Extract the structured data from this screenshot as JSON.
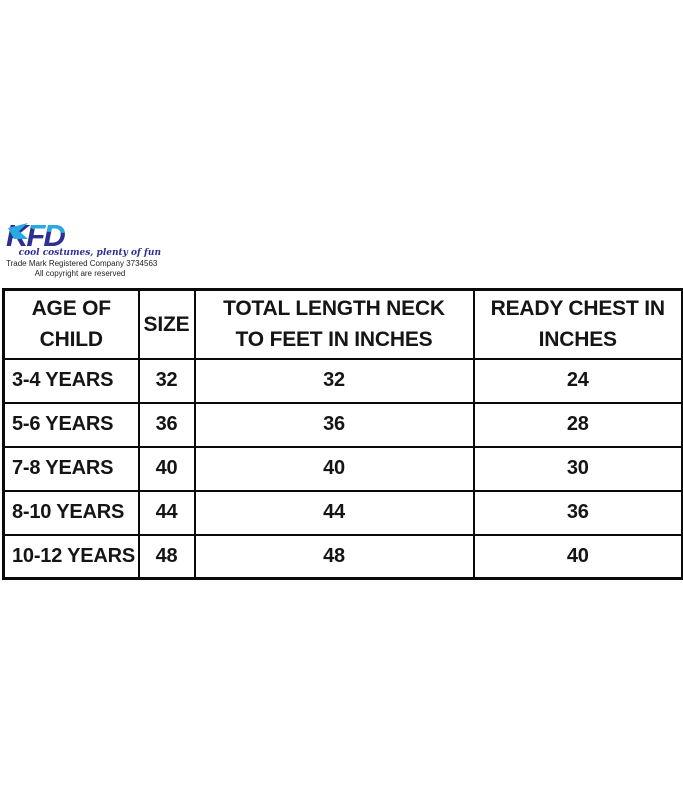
{
  "logo": {
    "brand": "KFD",
    "tagline": "cool costumes, plenty of fun",
    "trademark_line": "Trade Mark Registered Company 3734563",
    "copyright_line": "All copyright are reserved",
    "colors": {
      "navy": "#2d2f92",
      "light_blue": "#29a8e1"
    }
  },
  "chart_data": {
    "type": "table",
    "columns": [
      "AGE OF CHILD",
      "SIZE",
      "TOTAL LENGTH NECK TO FEET IN INCHES",
      "READY CHEST IN INCHES"
    ],
    "rows": [
      [
        "3-4 YEARS",
        "32",
        "32",
        "24"
      ],
      [
        "5-6 YEARS",
        "36",
        "36",
        "28"
      ],
      [
        "7-8 YEARS",
        "40",
        "40",
        "30"
      ],
      [
        "8-10 YEARS",
        "44",
        "44",
        "36"
      ],
      [
        "10-12 YEARS",
        "48",
        "48",
        "40"
      ]
    ]
  }
}
